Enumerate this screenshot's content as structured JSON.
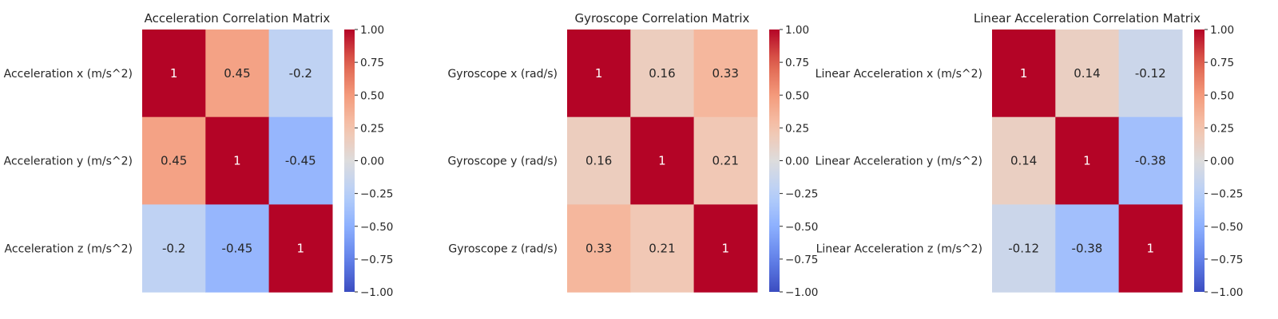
{
  "chart_data": [
    {
      "type": "heatmap",
      "title": "Acceleration Correlation Matrix",
      "row_labels": [
        "Acceleration x (m/s^2)",
        "Acceleration y (m/s^2)",
        "Acceleration z (m/s^2)"
      ],
      "values": [
        [
          1,
          0.45,
          -0.2
        ],
        [
          0.45,
          1,
          -0.45
        ],
        [
          -0.2,
          -0.45,
          1
        ]
      ],
      "cell_labels": [
        [
          "1",
          "0.45",
          "-0.2"
        ],
        [
          "0.45",
          "1",
          "-0.45"
        ],
        [
          "-0.2",
          "-0.45",
          "1"
        ]
      ],
      "colormap": "coolwarm",
      "vmin": -1,
      "vmax": 1,
      "colorbar_ticks": [
        1.0,
        0.75,
        0.5,
        0.25,
        0.0,
        -0.25,
        -0.5,
        -0.75,
        -1.0
      ],
      "colorbar_tick_labels": [
        "1.00",
        "0.75",
        "0.50",
        "0.25",
        "0.00",
        "−0.25",
        "−0.50",
        "−0.75",
        "−1.00"
      ]
    },
    {
      "type": "heatmap",
      "title": "Gyroscope Correlation Matrix",
      "row_labels": [
        "Gyroscope x (rad/s)",
        "Gyroscope y (rad/s)",
        "Gyroscope z (rad/s)"
      ],
      "values": [
        [
          1,
          0.16,
          0.33
        ],
        [
          0.16,
          1,
          0.21
        ],
        [
          0.33,
          0.21,
          1
        ]
      ],
      "cell_labels": [
        [
          "1",
          "0.16",
          "0.33"
        ],
        [
          "0.16",
          "1",
          "0.21"
        ],
        [
          "0.33",
          "0.21",
          "1"
        ]
      ],
      "colormap": "coolwarm",
      "vmin": -1,
      "vmax": 1,
      "colorbar_ticks": [
        1.0,
        0.75,
        0.5,
        0.25,
        0.0,
        -0.25,
        -0.5,
        -0.75,
        -1.0
      ],
      "colorbar_tick_labels": [
        "1.00",
        "0.75",
        "0.50",
        "0.25",
        "0.00",
        "−0.25",
        "−0.50",
        "−0.75",
        "−1.00"
      ]
    },
    {
      "type": "heatmap",
      "title": "Linear Acceleration Correlation Matrix",
      "row_labels": [
        "Linear Acceleration x (m/s^2)",
        "Linear Acceleration y (m/s^2)",
        "Linear Acceleration z (m/s^2)"
      ],
      "values": [
        [
          1,
          0.14,
          -0.12
        ],
        [
          0.14,
          1,
          -0.38
        ],
        [
          -0.12,
          -0.38,
          1
        ]
      ],
      "cell_labels": [
        [
          "1",
          "0.14",
          "-0.12"
        ],
        [
          "0.14",
          "1",
          "-0.38"
        ],
        [
          "-0.12",
          "-0.38",
          "1"
        ]
      ],
      "colormap": "coolwarm",
      "vmin": -1,
      "vmax": 1,
      "colorbar_ticks": [
        1.0,
        0.75,
        0.5,
        0.25,
        0.0,
        -0.25,
        -0.5,
        -0.75,
        -1.0
      ],
      "colorbar_tick_labels": [
        "1.00",
        "0.75",
        "0.50",
        "0.25",
        "0.00",
        "−0.25",
        "−0.50",
        "−0.75",
        "−1.00"
      ]
    }
  ]
}
